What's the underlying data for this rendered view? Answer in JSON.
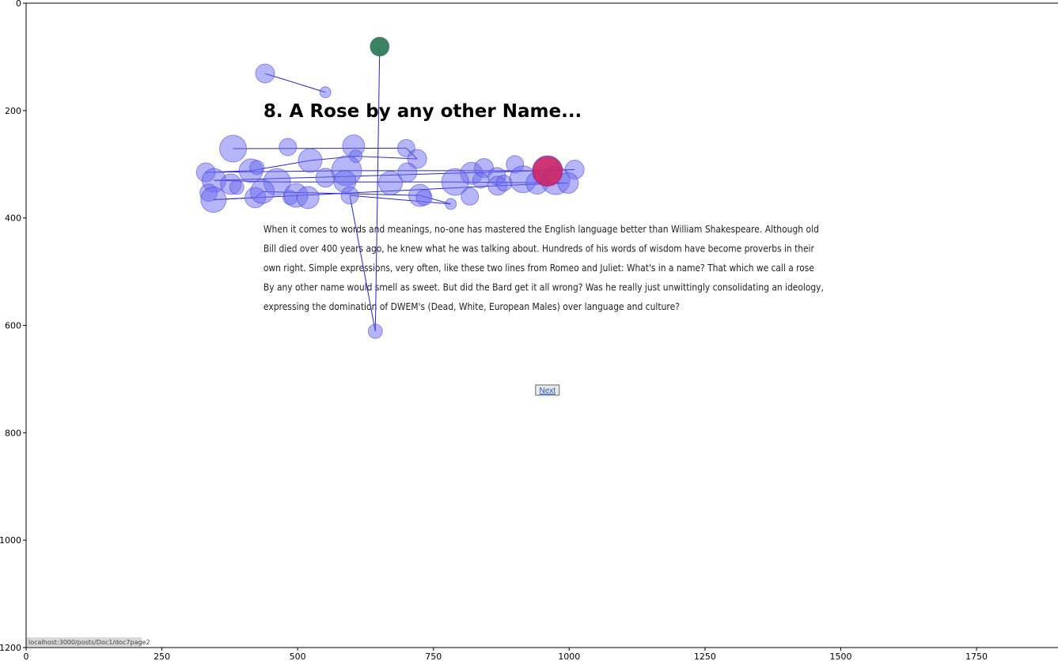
{
  "chart_data": {
    "type": "scatter",
    "xlim": [
      0,
      1900
    ],
    "ylim": [
      1200,
      0
    ],
    "x_ticks": [
      0,
      250,
      500,
      750,
      1000,
      1250,
      1500,
      1750
    ],
    "y_ticks": [
      0,
      200,
      400,
      600,
      800,
      1000,
      1200
    ],
    "page": {
      "title": "8. A Rose by any other Name...",
      "paragraph_lines": [
        "When it comes to words and meanings, no-one has mastered the English language better than William Shakespeare. Although old",
        "Bill died over 400 years ago, he knew what he was talking about. Hundreds of his words of wisdom have become proverbs in their",
        "own right. Simple expressions, very often, like these two lines from Romeo and Juliet: What's in a name? That which we call a rose",
        "By any other name would smell as sweet. But did the Bard get it all wrong? Was he really just unwittingly consolidating an ideology,",
        "expressing the domination of DWEM's (Dead, White, European Males) over language and culture?"
      ],
      "next_label": "Next",
      "status_url": "localhost:3000/posts/Doc1/doc7page2"
    },
    "colors": {
      "fixation_fill": "#6b6bf0",
      "fixation_stroke": "#3a3ad8",
      "saccade_line": "#2222dd",
      "start_marker": "#2e7d4f",
      "end_marker": "#e01848"
    },
    "fixations": [
      {
        "x": 651,
        "y": 81,
        "r": 12
      },
      {
        "x": 440,
        "y": 131,
        "r": 12
      },
      {
        "x": 551,
        "y": 166,
        "r": 7
      },
      {
        "x": 381,
        "y": 271,
        "r": 17
      },
      {
        "x": 482,
        "y": 268,
        "r": 11
      },
      {
        "x": 603,
        "y": 266,
        "r": 14
      },
      {
        "x": 700,
        "y": 270,
        "r": 11
      },
      {
        "x": 720,
        "y": 290,
        "r": 12
      },
      {
        "x": 607,
        "y": 285,
        "r": 8
      },
      {
        "x": 523,
        "y": 293,
        "r": 15
      },
      {
        "x": 331,
        "y": 315,
        "r": 12
      },
      {
        "x": 414,
        "y": 312,
        "r": 15
      },
      {
        "x": 425,
        "y": 306,
        "r": 9
      },
      {
        "x": 590,
        "y": 312,
        "r": 19
      },
      {
        "x": 702,
        "y": 315,
        "r": 12
      },
      {
        "x": 820,
        "y": 317,
        "r": 14
      },
      {
        "x": 843,
        "y": 307,
        "r": 12
      },
      {
        "x": 867,
        "y": 322,
        "r": 11
      },
      {
        "x": 900,
        "y": 300,
        "r": 11
      },
      {
        "x": 960,
        "y": 312,
        "r": 19
      },
      {
        "x": 1010,
        "y": 310,
        "r": 12
      },
      {
        "x": 346,
        "y": 330,
        "r": 15
      },
      {
        "x": 377,
        "y": 337,
        "r": 13
      },
      {
        "x": 388,
        "y": 343,
        "r": 9
      },
      {
        "x": 462,
        "y": 333,
        "r": 17
      },
      {
        "x": 551,
        "y": 325,
        "r": 12
      },
      {
        "x": 587,
        "y": 332,
        "r": 14
      },
      {
        "x": 671,
        "y": 335,
        "r": 15
      },
      {
        "x": 790,
        "y": 333,
        "r": 17
      },
      {
        "x": 837,
        "y": 330,
        "r": 10
      },
      {
        "x": 868,
        "y": 340,
        "r": 12
      },
      {
        "x": 880,
        "y": 335,
        "r": 10
      },
      {
        "x": 915,
        "y": 328,
        "r": 17
      },
      {
        "x": 941,
        "y": 335,
        "r": 14
      },
      {
        "x": 975,
        "y": 330,
        "r": 18
      },
      {
        "x": 998,
        "y": 335,
        "r": 13
      },
      {
        "x": 336,
        "y": 353,
        "r": 11
      },
      {
        "x": 345,
        "y": 366,
        "r": 16
      },
      {
        "x": 422,
        "y": 362,
        "r": 13
      },
      {
        "x": 435,
        "y": 351,
        "r": 15
      },
      {
        "x": 486,
        "y": 362,
        "r": 9
      },
      {
        "x": 497,
        "y": 358,
        "r": 15
      },
      {
        "x": 519,
        "y": 362,
        "r": 14
      },
      {
        "x": 596,
        "y": 358,
        "r": 11
      },
      {
        "x": 725,
        "y": 358,
        "r": 14
      },
      {
        "x": 733,
        "y": 362,
        "r": 10
      },
      {
        "x": 782,
        "y": 374,
        "r": 7
      },
      {
        "x": 817,
        "y": 360,
        "r": 11
      },
      {
        "x": 643,
        "y": 611,
        "r": 9
      },
      {
        "x": 960,
        "y": 313,
        "r": 19
      }
    ],
    "saccade_path": [
      [
        440,
        131
      ],
      [
        551,
        166
      ],
      [
        381,
        271
      ],
      [
        700,
        270
      ],
      [
        720,
        290
      ],
      [
        607,
        285
      ],
      [
        523,
        293
      ],
      [
        414,
        312
      ],
      [
        331,
        315
      ],
      [
        590,
        312
      ],
      [
        960,
        312
      ],
      [
        1010,
        310
      ],
      [
        346,
        330
      ],
      [
        462,
        333
      ],
      [
        790,
        333
      ],
      [
        998,
        335
      ],
      [
        868,
        340
      ],
      [
        345,
        366
      ],
      [
        422,
        362
      ],
      [
        435,
        351
      ],
      [
        725,
        358
      ],
      [
        782,
        374
      ],
      [
        596,
        358
      ],
      [
        643,
        611
      ],
      [
        651,
        81
      ]
    ],
    "start": {
      "x": 651,
      "y": 81,
      "r": 12
    },
    "end": {
      "x": 960,
      "y": 313,
      "r": 19
    }
  }
}
